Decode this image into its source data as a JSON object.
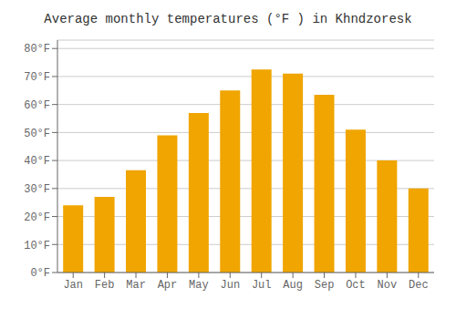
{
  "chart_data": {
    "type": "bar",
    "title": "Average monthly temperatures (°F ) in Khndzoresk",
    "categories": [
      "Jan",
      "Feb",
      "Mar",
      "Apr",
      "May",
      "Jun",
      "Jul",
      "Aug",
      "Sep",
      "Oct",
      "Nov",
      "Dec"
    ],
    "values": [
      24,
      27,
      36.5,
      49,
      57,
      65,
      72.5,
      71,
      63.5,
      51,
      40,
      30
    ],
    "color": "#F0A500",
    "ylim": [
      0,
      83
    ],
    "yticks": [
      {
        "value": 0,
        "label": "0°F"
      },
      {
        "value": 10,
        "label": "10°F"
      },
      {
        "value": 20,
        "label": "20°F"
      },
      {
        "value": 30,
        "label": "30°F"
      },
      {
        "value": 40,
        "label": "40°F"
      },
      {
        "value": 50,
        "label": "50°F"
      },
      {
        "value": 60,
        "label": "60°F"
      },
      {
        "value": 70,
        "label": "70°F"
      },
      {
        "value": 80,
        "label": "80°F"
      }
    ],
    "grid": true
  }
}
